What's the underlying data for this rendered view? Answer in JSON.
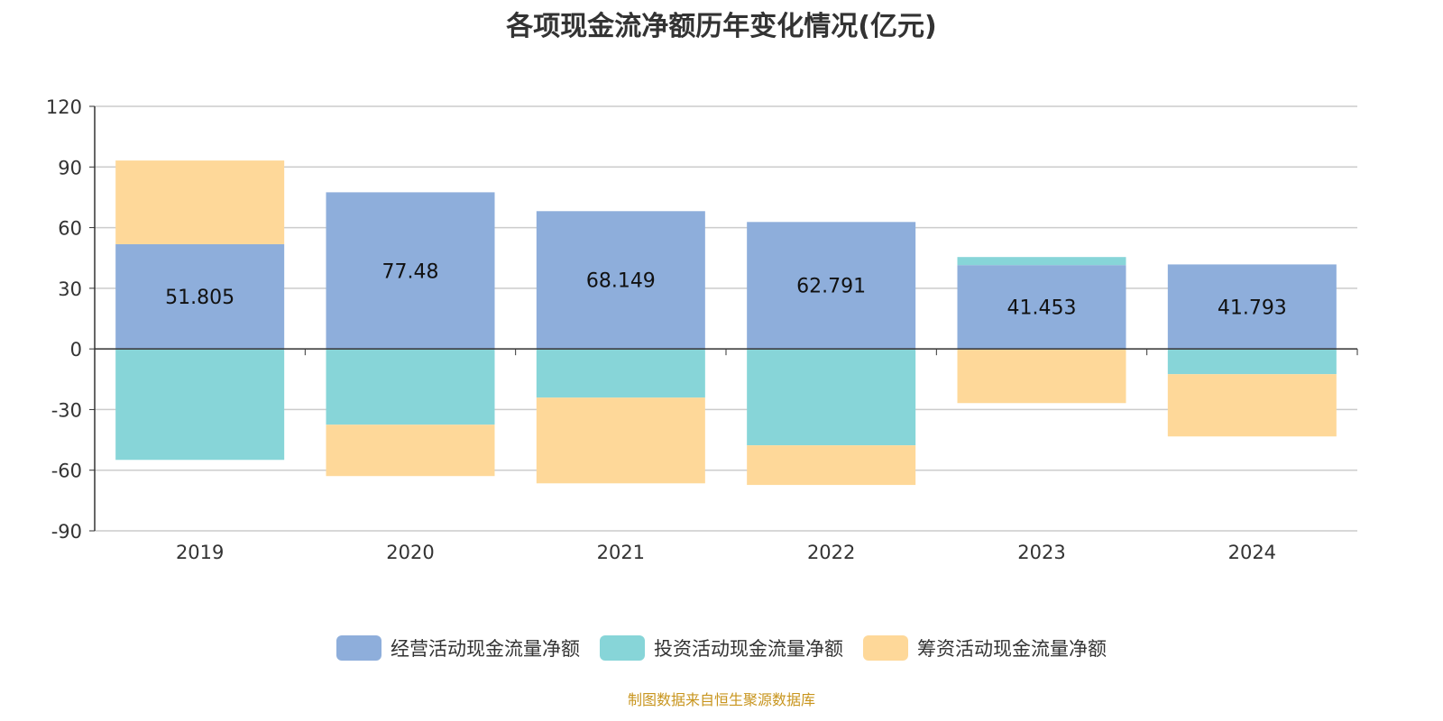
{
  "chart_data": {
    "type": "bar",
    "stacked": true,
    "title": "各项现金流净额历年变化情况(亿元)",
    "categories": [
      "2019",
      "2020",
      "2021",
      "2022",
      "2023",
      "2024"
    ],
    "series": [
      {
        "name": "经营活动现金流量净额",
        "color": "#8eaedb",
        "values": [
          51.805,
          77.48,
          68.149,
          62.791,
          41.453,
          41.793
        ],
        "labels": [
          "51.805",
          "77.48",
          "68.149",
          "62.791",
          "41.453",
          "41.793"
        ]
      },
      {
        "name": "投资活动现金流量净额",
        "color": "#87d5d8",
        "values": [
          -54.9,
          -37.5,
          -24.1,
          -47.7,
          4.0,
          -12.5
        ]
      },
      {
        "name": "筹资活动现金流量净额",
        "color": "#fed899",
        "values": [
          41.4,
          -25.4,
          -42.4,
          -19.6,
          -26.8,
          -30.8
        ]
      }
    ],
    "ylim": [
      -90,
      120
    ],
    "yticks": [
      120,
      90,
      60,
      30,
      0,
      -30,
      -60,
      -90
    ],
    "grid": true,
    "legend": "bottom"
  },
  "source": "制图数据来自恒生聚源数据库"
}
